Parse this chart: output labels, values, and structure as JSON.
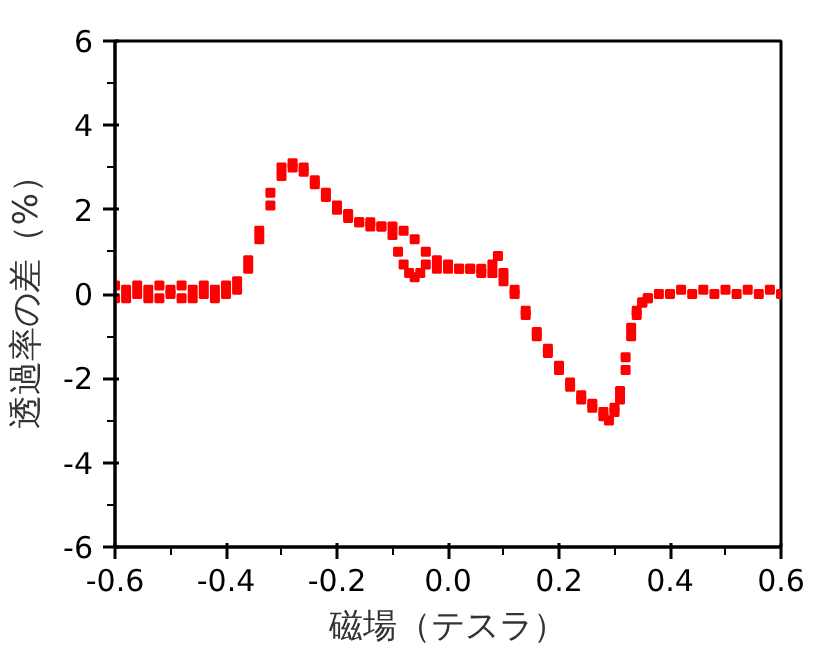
{
  "chart_data": {
    "type": "scatter",
    "xlabel": "磁場（テスラ）",
    "ylabel": "透過率の差（%）",
    "marker": "square",
    "grid": false,
    "xlim": [
      -0.6,
      0.6
    ],
    "ylim": [
      -6,
      6
    ],
    "xticks": [
      -0.6,
      {
        "value": -0.5,
        "label": null
      },
      -0.4,
      {
        "value": -0.3,
        "label": null
      },
      -0.2,
      {
        "value": -0.1,
        "label": null
      },
      {
        "value": 0.0,
        "label": "0.0"
      },
      {
        "value": 0.1,
        "label": null
      },
      0.2,
      {
        "value": 0.3,
        "label": null
      },
      0.4,
      {
        "value": 0.5,
        "label": null
      },
      0.6
    ],
    "yticks": [
      -6,
      {
        "value": -5,
        "label": null
      },
      -4,
      {
        "value": -3,
        "label": null
      },
      -2,
      {
        "value": -1,
        "label": null
      },
      0,
      {
        "value": 1,
        "label": null
      },
      2,
      {
        "value": 3,
        "label": null
      },
      4,
      {
        "value": 5,
        "label": null
      },
      6
    ],
    "series": [
      {
        "color": "#ff0000",
        "x": [
          -0.6,
          -0.58,
          -0.56,
          -0.54,
          -0.52,
          -0.5,
          -0.48,
          -0.46,
          -0.44,
          -0.42,
          -0.4,
          -0.38,
          -0.36,
          -0.34,
          -0.32,
          -0.3,
          -0.28,
          -0.26,
          -0.24,
          -0.22,
          -0.2,
          -0.18,
          -0.16,
          -0.14,
          -0.12,
          -0.1,
          -0.08,
          -0.06,
          -0.04,
          -0.02,
          0.0,
          0.02,
          0.04,
          0.06,
          0.08,
          0.1,
          0.12,
          0.14,
          0.16,
          0.18,
          0.2,
          0.22,
          0.24,
          0.26,
          0.28,
          0.29,
          0.3,
          0.31,
          0.32,
          0.33,
          0.34,
          0.35,
          0.36,
          0.38,
          0.4,
          0.42,
          0.44,
          0.46,
          0.48,
          0.5,
          0.52,
          0.54,
          0.56,
          0.58,
          0.6
        ],
        "values": [
          0.2,
          0.1,
          0.2,
          0.1,
          0.2,
          0.1,
          0.2,
          0.1,
          0.2,
          0.1,
          0.2,
          0.3,
          0.6,
          1.3,
          2.1,
          2.8,
          3.1,
          3.0,
          2.7,
          2.4,
          2.1,
          1.9,
          1.7,
          1.6,
          1.6,
          1.6,
          1.5,
          1.3,
          1.0,
          0.8,
          0.7,
          0.6,
          0.6,
          0.5,
          0.5,
          0.3,
          0.0,
          -0.5,
          -1.0,
          -1.4,
          -1.8,
          -2.2,
          -2.5,
          -2.7,
          -2.9,
          -3.0,
          -2.8,
          -2.5,
          -1.8,
          -1.0,
          -0.5,
          -0.2,
          -0.1,
          0.0,
          0.0,
          0.1,
          0.0,
          0.1,
          0.0,
          0.1,
          0.0,
          0.1,
          0.0,
          0.1,
          0.0
        ]
      },
      {
        "color": "#ff0000",
        "x": [
          -0.6,
          -0.58,
          -0.56,
          -0.54,
          -0.52,
          -0.5,
          -0.48,
          -0.46,
          -0.44,
          -0.42,
          -0.4,
          -0.38,
          -0.36,
          -0.34,
          -0.32,
          -0.3,
          -0.28,
          -0.26,
          -0.24,
          -0.22,
          -0.2,
          -0.18,
          -0.16,
          -0.14,
          -0.12,
          -0.1,
          -0.09,
          -0.08,
          -0.07,
          -0.06,
          -0.05,
          -0.04,
          -0.02,
          0.0,
          0.02,
          0.04,
          0.06,
          0.08,
          0.09,
          0.1,
          0.12,
          0.14,
          0.16,
          0.18,
          0.2,
          0.22,
          0.24,
          0.26,
          0.28,
          0.3,
          0.31,
          0.32,
          0.33,
          0.34,
          0.35,
          0.36
        ],
        "values": [
          -0.1,
          -0.1,
          0.0,
          -0.1,
          -0.1,
          0.0,
          -0.1,
          -0.1,
          0.0,
          -0.1,
          0.0,
          0.1,
          0.8,
          1.5,
          2.4,
          3.0,
          3.0,
          2.9,
          2.6,
          2.3,
          2.0,
          1.8,
          1.7,
          1.7,
          1.6,
          1.4,
          1.0,
          0.7,
          0.5,
          0.4,
          0.5,
          0.7,
          0.6,
          0.6,
          0.6,
          0.6,
          0.6,
          0.7,
          0.9,
          0.5,
          0.1,
          -0.4,
          -0.9,
          -1.3,
          -1.7,
          -2.1,
          -2.4,
          -2.6,
          -2.8,
          -2.7,
          -2.3,
          -1.5,
          -0.8,
          -0.4,
          -0.2,
          -0.1
        ]
      }
    ]
  }
}
